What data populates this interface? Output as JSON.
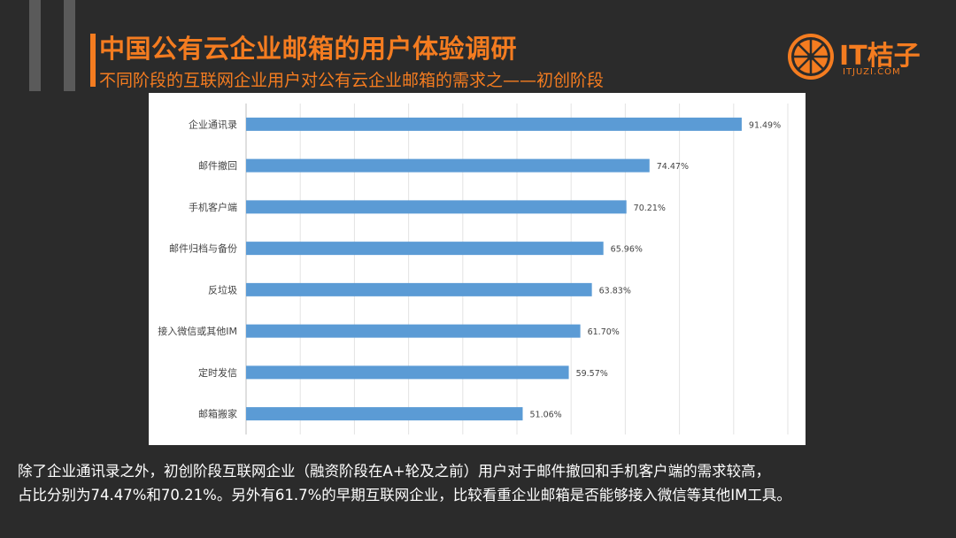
{
  "header": {
    "title": "中国公有云企业邮箱的用户体验调研",
    "subtitle": "不同阶段的互联网企业用户对公有云企业邮箱的需求之——初创阶段"
  },
  "logo": {
    "text": "IT桔子",
    "domain": "ITJUZI.COM",
    "color": "#f47c20",
    "icon": "orange-slice-icon"
  },
  "chart_data": {
    "type": "bar",
    "orientation": "horizontal",
    "categories": [
      "企业通讯录",
      "邮件撤回",
      "手机客户端",
      "邮件归档与备份",
      "反垃圾",
      "接入微信或其他IM",
      "定时发信",
      "邮箱搬家"
    ],
    "values": [
      91.49,
      74.47,
      70.21,
      65.96,
      63.83,
      61.7,
      59.57,
      51.06
    ],
    "data_labels": [
      "91.49%",
      "74.47%",
      "70.21%",
      "65.96%",
      "63.83%",
      "61.70%",
      "59.57%",
      "51.06%"
    ],
    "xlim": [
      0,
      100
    ],
    "grid": true,
    "bar_color": "#5b9bd5"
  },
  "footer": {
    "line1": "除了企业通讯录之外，初创阶段互联网企业（融资阶段在A+轮及之前）用户对于邮件撤回和手机客户端的需求较高，",
    "line2": "占比分别为74.47%和70.21%。另外有61.7%的早期互联网企业，比较看重企业邮箱是否能够接入微信等其他IM工具。"
  },
  "colors": {
    "background": "#2b2b2b",
    "accent": "#f47c20",
    "panel": "#ffffff"
  }
}
